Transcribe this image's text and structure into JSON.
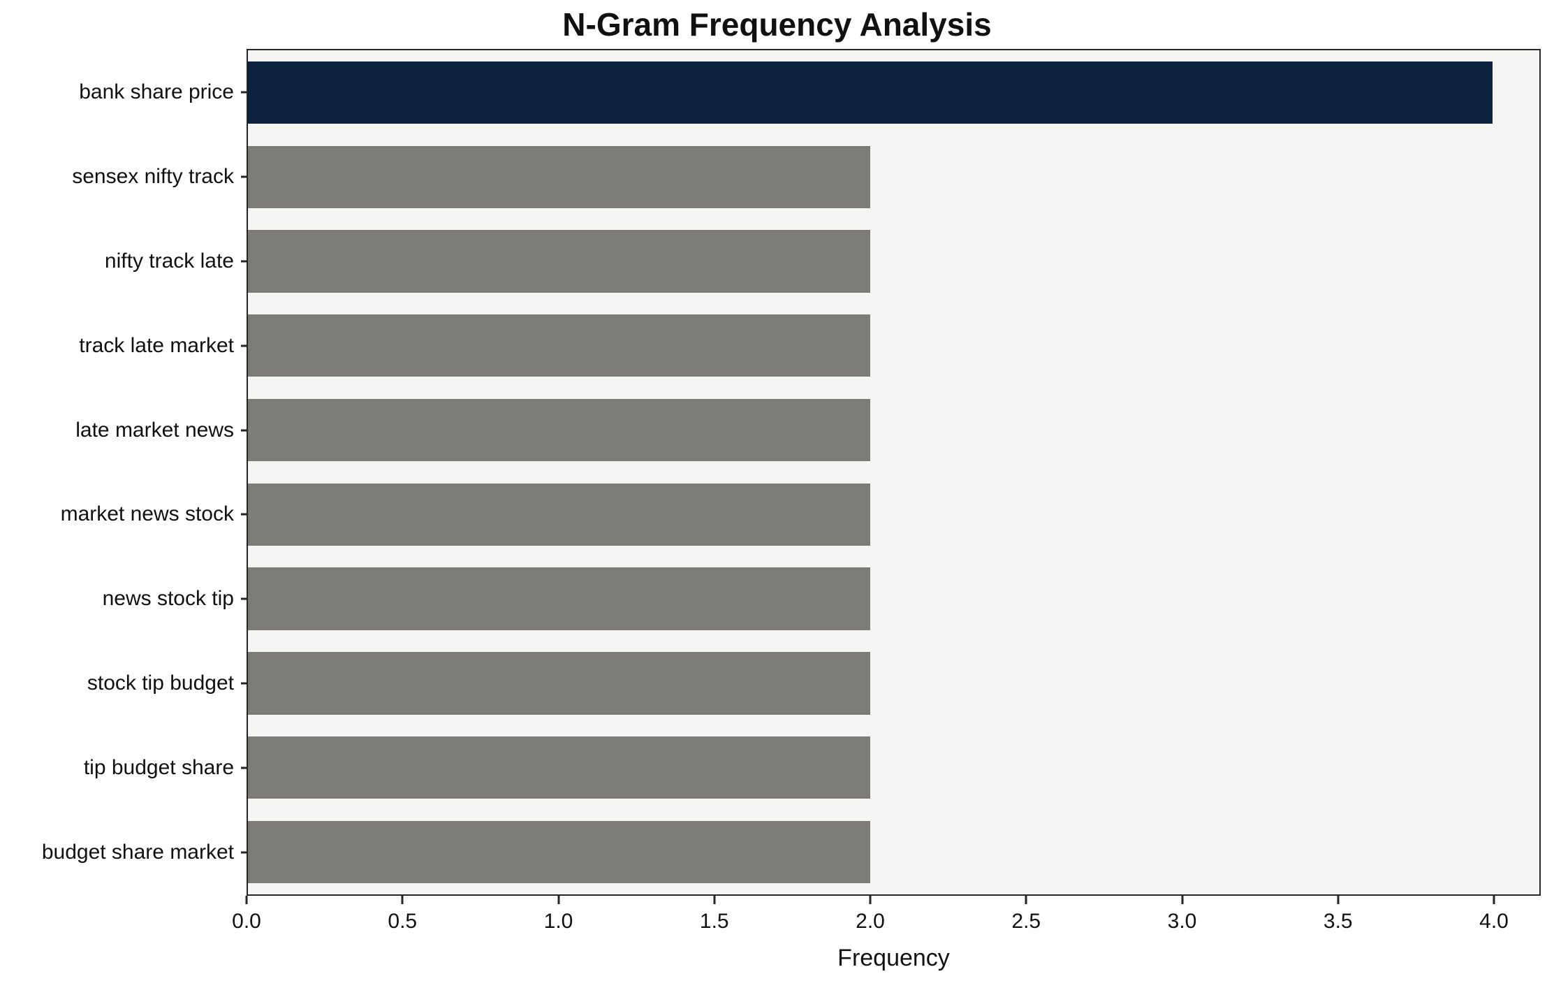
{
  "chart_data": {
    "type": "bar",
    "orientation": "horizontal",
    "title": "N-Gram Frequency Analysis",
    "xlabel": "Frequency",
    "ylabel": "",
    "categories": [
      "bank share price",
      "sensex nifty track",
      "nifty track late",
      "track late market",
      "late market news",
      "market news stock",
      "news stock tip",
      "stock tip budget",
      "tip budget share",
      "budget share market"
    ],
    "values": [
      4,
      2,
      2,
      2,
      2,
      2,
      2,
      2,
      2,
      2
    ],
    "xlim": [
      0,
      4.15
    ],
    "x_tick_labels": [
      "0.0",
      "0.5",
      "1.0",
      "1.5",
      "2.0",
      "2.5",
      "3.0",
      "3.5",
      "4.0"
    ],
    "grid": false,
    "legend_position": "none",
    "colors": {
      "highlight_bar": "#0d2240",
      "default_bar": "#7c7b75",
      "plot_background": "#f5f5f3",
      "axis": "#262626",
      "text": "#111111"
    }
  }
}
